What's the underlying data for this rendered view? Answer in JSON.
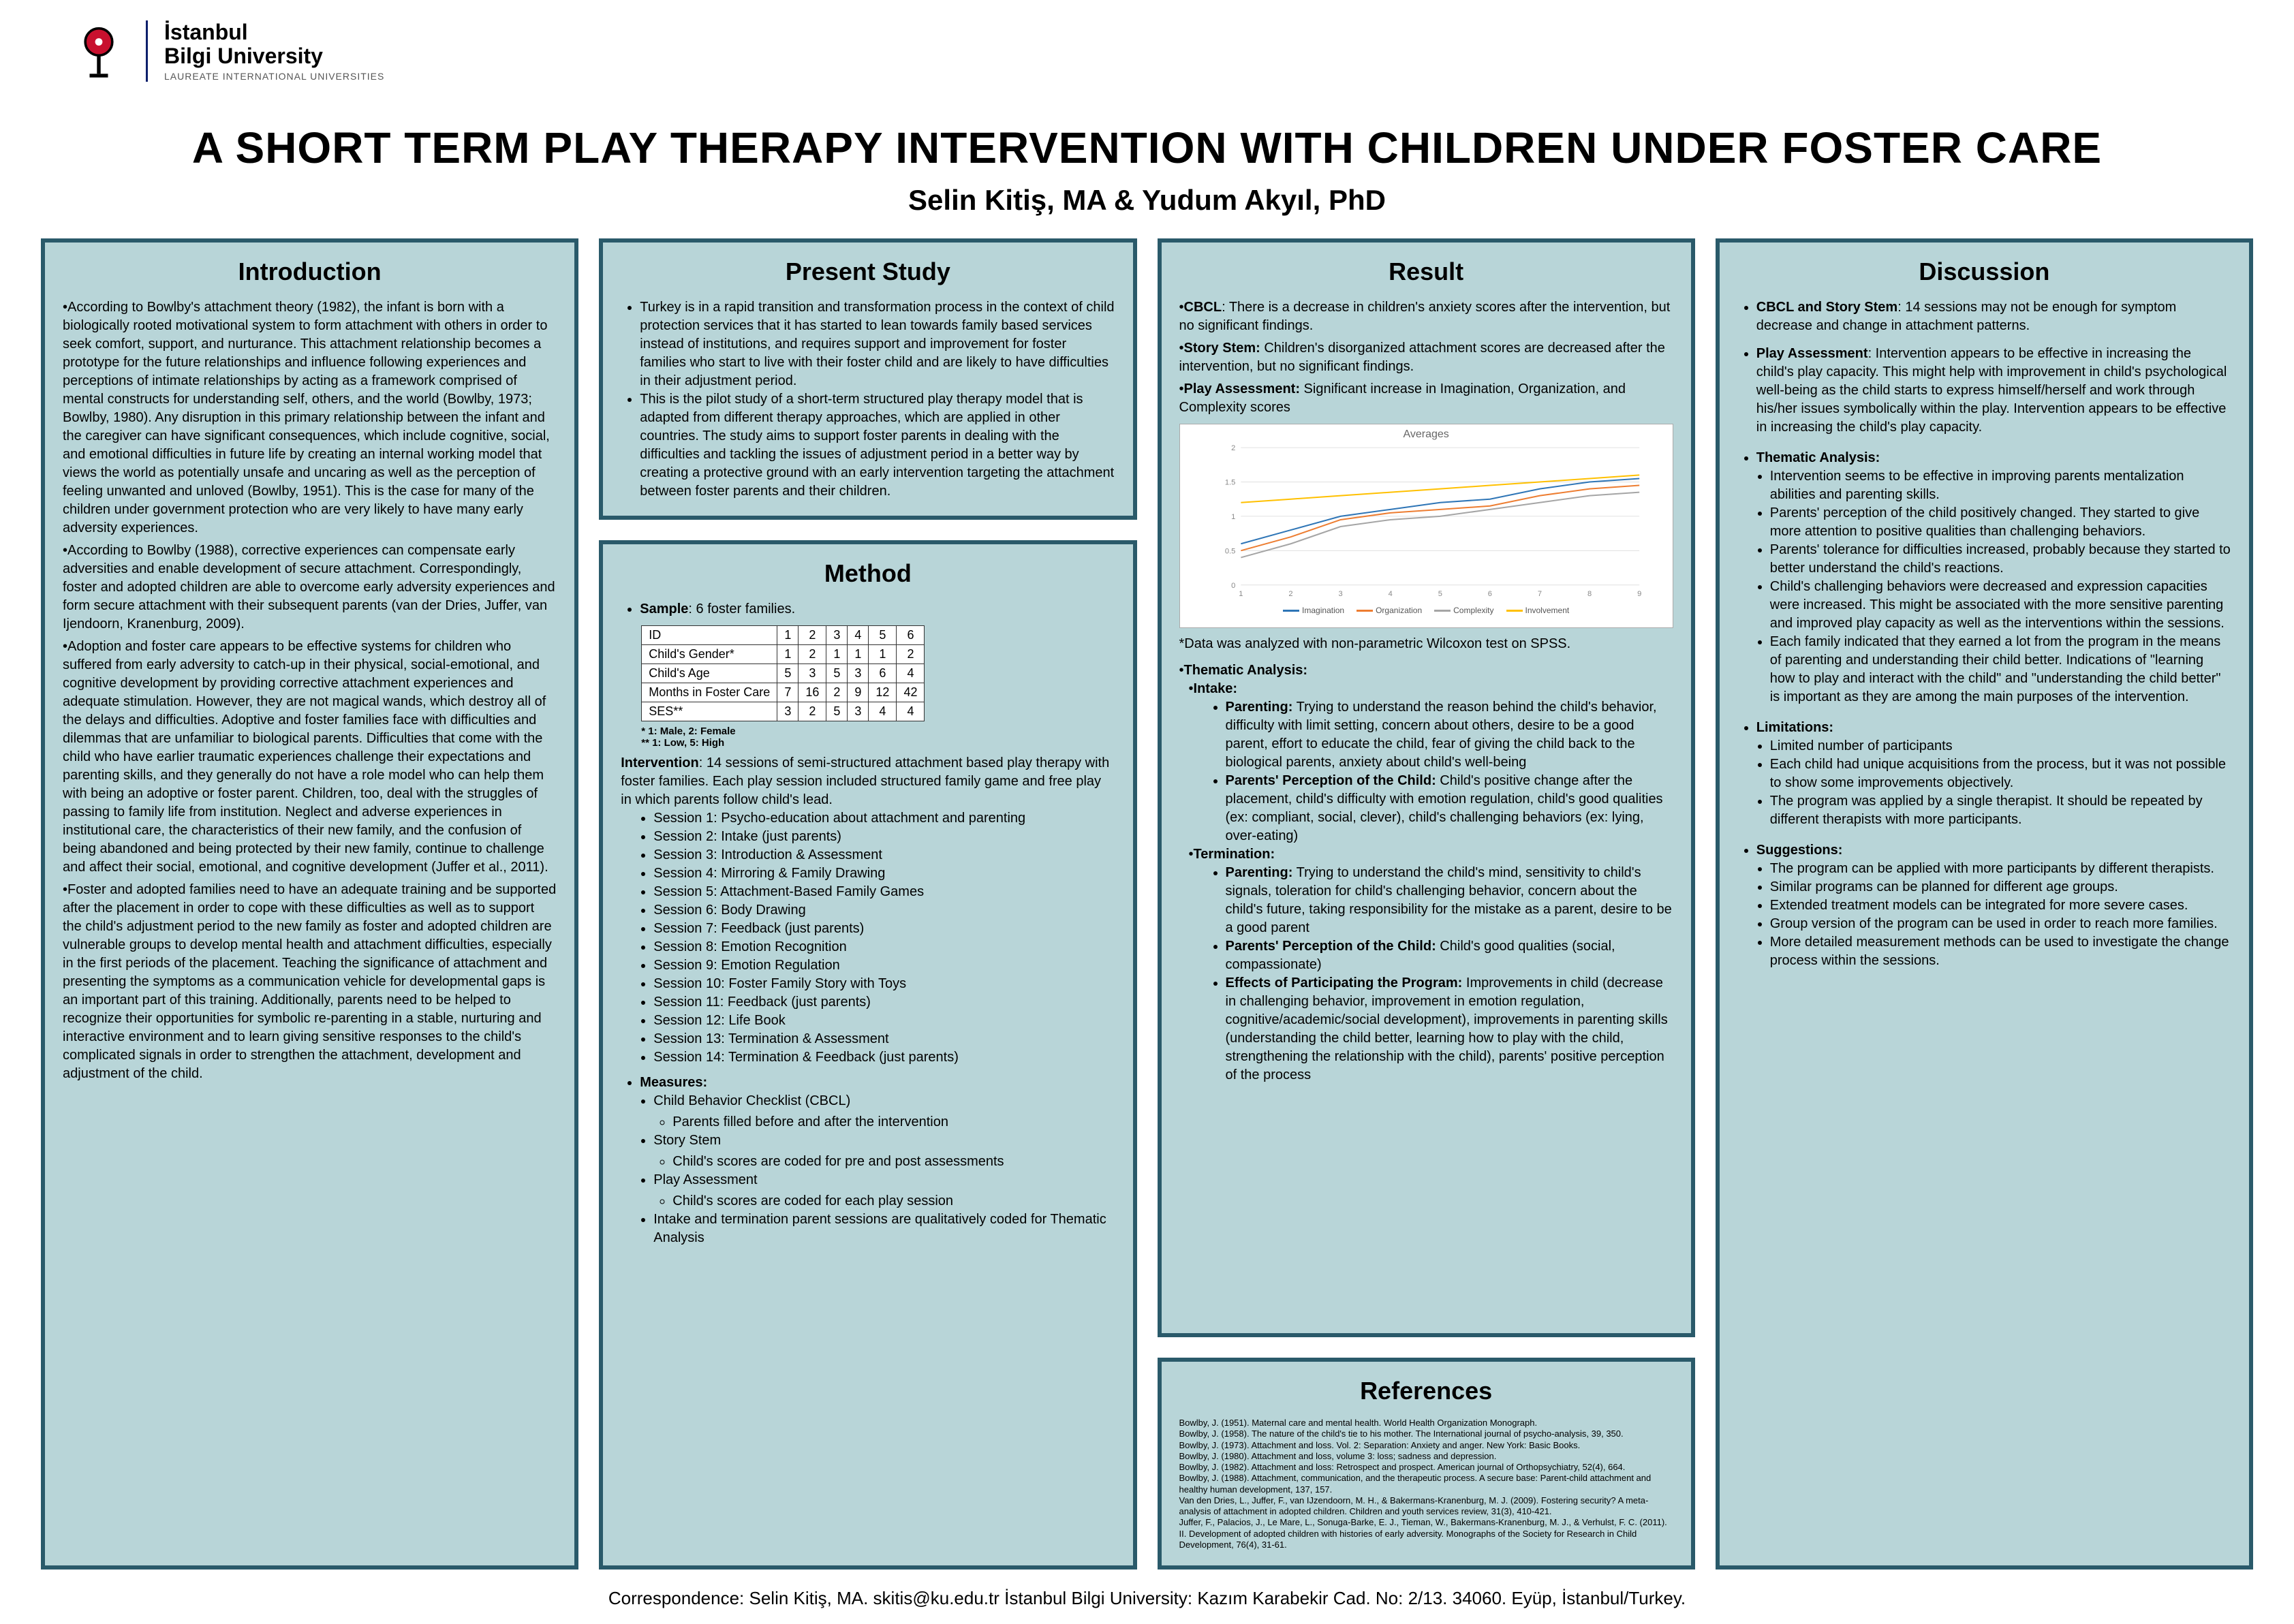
{
  "university": {
    "name_line1": "İstanbul",
    "name_line2": "Bilgi University",
    "subtitle": "LAUREATE INTERNATIONAL UNIVERSITIES"
  },
  "title": "A SHORT TERM PLAY THERAPY INTERVENTION WITH CHILDREN UNDER FOSTER CARE",
  "authors": "Selin Kitiş, MA & Yudum Akyıl, PhD",
  "colors": {
    "panel_border": "#2a5a6a",
    "panel_bg": "#b8d5d8",
    "page_bg": "#ffffff"
  },
  "introduction": {
    "heading": "Introduction",
    "paragraphs": [
      "According to Bowlby's attachment theory (1982), the infant is born with a biologically rooted motivational system to form attachment with others in order to seek comfort, support, and nurturance. This attachment relationship becomes a prototype for the future relationships and influence following experiences and perceptions of intimate relationships by acting as a framework comprised of mental constructs for understanding self, others, and the world (Bowlby, 1973; Bowlby, 1980). Any disruption in this primary relationship between the infant and the caregiver can have significant consequences, which include cognitive, social, and emotional difficulties in future life by creating an internal working model that views the world as potentially unsafe and uncaring as well as the perception of feeling unwanted and unloved (Bowlby, 1951). This is the case for many of the children under government protection who are very likely to have many early adversity experiences.",
      "According to Bowlby (1988), corrective experiences can compensate early adversities and enable development of secure attachment. Correspondingly, foster and adopted children are able to overcome early adversity experiences and form secure attachment with their subsequent parents (van der Dries, Juffer, van Ijendoorn, Kranenburg, 2009).",
      "Adoption and foster care appears to be effective systems for children who suffered from early adversity to catch-up in their physical, social-emotional, and cognitive development by providing corrective attachment experiences and adequate stimulation. However, they are not magical wands, which destroy all of the delays and difficulties. Adoptive and foster families face with difficulties and dilemmas that are unfamiliar to biological parents. Difficulties that come with the child who have earlier traumatic experiences challenge their expectations and parenting skills, and they generally do not have a role model who can help them with being an adoptive or foster parent. Children, too, deal with the struggles of passing to family life from institution. Neglect and adverse experiences in institutional care, the characteristics of their new family, and the confusion of being abandoned and being protected by their new family, continue to challenge and affect their social, emotional, and cognitive development (Juffer et al., 2011).",
      "Foster and adopted families need to have an adequate training and be supported after the placement in order to cope with these difficulties as well as to support the child's adjustment period to the new family as foster and adopted children are vulnerable groups to develop mental health and attachment difficulties, especially in the first periods of the placement. Teaching the significance of attachment and presenting the symptoms as a communication vehicle for developmental gaps is an important part of this training. Additionally, parents need to be helped to recognize their opportunities for symbolic re-parenting in a stable, nurturing and interactive environment and to learn giving sensitive responses to the child's complicated signals in order to strengthen the attachment, development and adjustment of the child."
    ]
  },
  "present_study": {
    "heading": "Present Study",
    "bullets": [
      "Turkey is in a rapid transition and transformation process in the context of child protection services that it has started to lean towards family based services instead of institutions, and requires support and improvement for foster families who start to live with their foster child and are likely to have difficulties in their adjustment period.",
      "This is the pilot study of a short-term structured play therapy model that is adapted from different therapy approaches, which are applied in other countries. The study aims to support foster parents in dealing with the difficulties and tackling the issues of adjustment period in a better way by creating a protective ground with an early intervention targeting the attachment between foster parents and their children."
    ]
  },
  "method": {
    "heading": "Method",
    "sample_label": "Sample",
    "sample_text": ": 6 foster families.",
    "table": {
      "headers": [
        "ID",
        "1",
        "2",
        "3",
        "4",
        "5",
        "6"
      ],
      "rows": [
        [
          "Child's Gender*",
          "1",
          "2",
          "1",
          "1",
          "1",
          "2"
        ],
        [
          "Child's Age",
          "5",
          "3",
          "5",
          "3",
          "6",
          "4"
        ],
        [
          "Months in Foster Care",
          "7",
          "16",
          "2",
          "9",
          "12",
          "42"
        ],
        [
          "SES**",
          "3",
          "2",
          "5",
          "3",
          "4",
          "4"
        ]
      ],
      "footnote1": "* 1: Male, 2: Female",
      "footnote2": "** 1: Low, 5: High"
    },
    "intervention_label": "Intervention",
    "intervention_text": ": 14 sessions of semi-structured attachment based play therapy with foster families. Each play session included structured family game and free play in which parents follow child's lead.",
    "sessions": [
      "Session 1: Psycho-education about attachment and parenting",
      "Session 2: Intake (just parents)",
      "Session 3: Introduction & Assessment",
      "Session 4: Mirroring & Family Drawing",
      "Session 5: Attachment-Based Family Games",
      "Session 6: Body Drawing",
      "Session 7: Feedback (just parents)",
      "Session 8:  Emotion Recognition",
      "Session 9: Emotion Regulation",
      "Session 10: Foster Family Story with Toys",
      "Session 11: Feedback (just parents)",
      "Session 12: Life Book",
      "Session 13: Termination & Assessment",
      "Session 14: Termination & Feedback (just parents)"
    ],
    "measures_label": "Measures:",
    "measures": [
      {
        "label": "Child Behavior Checklist (CBCL)",
        "sub": [
          "Parents filled before and after the intervention"
        ]
      },
      {
        "label": "Story Stem",
        "sub": [
          "Child's scores are coded for pre and post assessments"
        ]
      },
      {
        "label": "Play Assessment",
        "sub": [
          "Child's scores are coded for each play session"
        ]
      },
      {
        "label": "Intake and termination parent sessions are qualitatively coded for Thematic Analysis",
        "sub": []
      }
    ]
  },
  "result": {
    "heading": "Result",
    "lines": [
      {
        "label": "CBCL",
        "text": ": There is a decrease in children's anxiety scores after the intervention, but no significant findings."
      },
      {
        "label": "Story Stem:",
        "text": " Children's disorganized attachment scores are decreased after the intervention, but no significant findings."
      },
      {
        "label": "Play Assessment:",
        "text": " Significant increase in Imagination, Organization, and Complexity scores"
      }
    ],
    "chart": {
      "type": "line",
      "title": "Averages",
      "x_categories": [
        "1",
        "2",
        "3",
        "4",
        "5",
        "6",
        "7",
        "8",
        "9"
      ],
      "ylim": [
        0,
        2
      ],
      "ytick_step": 0.5,
      "background_color": "#ffffff",
      "grid_color": "#e0e0e0",
      "line_width": 2,
      "series": [
        {
          "name": "Imagination",
          "color": "#2e75b6",
          "values": [
            0.6,
            0.8,
            1.0,
            1.1,
            1.2,
            1.25,
            1.4,
            1.5,
            1.55
          ]
        },
        {
          "name": "Organization",
          "color": "#ed7d31",
          "values": [
            0.5,
            0.7,
            0.95,
            1.05,
            1.1,
            1.15,
            1.3,
            1.4,
            1.45
          ]
        },
        {
          "name": "Complexity",
          "color": "#a5a5a5",
          "values": [
            0.4,
            0.6,
            0.85,
            0.95,
            1.0,
            1.1,
            1.2,
            1.3,
            1.35
          ]
        },
        {
          "name": "Involvement",
          "color": "#ffc000",
          "values": [
            1.2,
            1.25,
            1.3,
            1.35,
            1.4,
            1.45,
            1.5,
            1.55,
            1.6
          ]
        }
      ]
    },
    "chart_note": "*Data was analyzed with non-parametric Wilcoxon test on SPSS.",
    "thematic_heading": "Thematic Analysis:",
    "thematic": [
      {
        "label": "Intake:",
        "items": [
          {
            "label": "Parenting:",
            "text": " Trying to understand the reason behind the child's behavior, difficulty with limit setting, concern about others, desire to be a good parent, effort to educate the child, fear of giving the child back to the biological parents, anxiety about child's well-being"
          },
          {
            "label": "Parents' Perception of the Child:",
            "text": " Child's positive change after the placement, child's difficulty with emotion regulation, child's good qualities (ex: compliant, social, clever), child's challenging behaviors (ex: lying, over-eating)"
          }
        ]
      },
      {
        "label": "Termination:",
        "items": [
          {
            "label": "Parenting:",
            "text": " Trying to understand the child's mind, sensitivity to child's signals, toleration for child's challenging behavior, concern about the child's future, taking responsibility for the mistake as a parent, desire to be a good parent"
          },
          {
            "label": "Parents' Perception of the Child:",
            "text": " Child's good qualities (social, compassionate)"
          },
          {
            "label": "Effects of Participating the Program:",
            "text": " Improvements in child (decrease in challenging behavior, improvement in emotion regulation, cognitive/academic/social development), improvements in parenting skills (understanding the child better, learning how to play with the child, strengthening the relationship with the child), parents' positive perception of the process"
          }
        ]
      }
    ]
  },
  "references": {
    "heading": "References",
    "items": [
      "Bowlby, J. (1951). Maternal care and mental health. World Health Organization Monograph.",
      "Bowlby, J. (1958). The nature of the child's tie to his mother. The International journal of psycho-analysis, 39, 350.",
      "Bowlby, J. (1973). Attachment and loss. Vol. 2: Separation: Anxiety and anger. New York: Basic Books.",
      "Bowlby, J. (1980). Attachment and loss, volume 3: loss; sadness and depression.",
      "Bowlby, J. (1982). Attachment and loss: Retrospect and prospect. American journal of Orthopsychiatry, 52(4), 664.",
      "Bowlby, J. (1988). Attachment, communication, and the therapeutic process. A secure base: Parent-child attachment and healthy human development, 137, 157.",
      "Van den Dries, L., Juffer, F., van IJzendoorn, M. H., & Bakermans-Kranenburg, M. J. (2009). Fostering security? A meta-analysis of attachment in adopted children. Children and youth services review, 31(3), 410-421.",
      "Juffer, F., Palacios, J., Le Mare, L., Sonuga‐Barke, E. J., Tieman, W., Bakermans‐Kranenburg, M. J., & Verhulst, F. C. (2011). II. Development of adopted children with histories of early adversity. Monographs of the Society for Research in Child Development, 76(4), 31-61."
    ]
  },
  "discussion": {
    "heading": "Discussion",
    "top_items": [
      {
        "label": "CBCL and Story Stem",
        "text": ": 14 sessions may not be enough for symptom decrease and change in attachment patterns."
      },
      {
        "label": "Play Assessment",
        "text": ": Intervention appears to be effective in increasing the child's play capacity.  This might help with improvement in child's psychological well-being as the child starts to express himself/herself and work through his/her issues symbolically within the play. Intervention appears to be effective in increasing the child's play capacity."
      }
    ],
    "thematic_label": "Thematic Analysis:",
    "thematic_items": [
      "Intervention seems to be effective in improving parents mentalization abilities and parenting skills.",
      "Parents' perception of the child positively changed. They started to give more attention to positive qualities than challenging behaviors.",
      "Parents' tolerance for difficulties increased, probably because they started to better understand the child's reactions.",
      "Child's challenging behaviors were decreased and expression capacities were increased. This might be associated with the more sensitive parenting and improved play capacity as well as the interventions within the sessions.",
      "Each family indicated that they earned a lot from the program in the means of parenting and understanding their child better. Indications of \"learning how to play and interact with the child\" and \"understanding the child better\" is important as they are among the main purposes of the intervention."
    ],
    "limitations_label": "Limitations:",
    "limitations": [
      "Limited number of participants",
      "Each child had unique acquisitions from the process, but it was not possible to show some improvements objectively.",
      "The program was applied by a single therapist. It should be repeated by different therapists with more participants."
    ],
    "suggestions_label": "Suggestions:",
    "suggestions": [
      "The program can be applied with more participants by different therapists.",
      "Similar programs can be planned for different age groups.",
      "Extended treatment models can be integrated for more severe cases.",
      "Group version of the program can be used in order to reach more families.",
      "More detailed measurement methods can be used to investigate the change process within the sessions."
    ]
  },
  "correspondence": "Correspondence: Selin Kitiş, MA.        skitis@ku.edu.tr        İstanbul Bilgi University: Kazım Karabekir Cad. No: 2/13. 34060. Eyüp, İstanbul/Turkey."
}
